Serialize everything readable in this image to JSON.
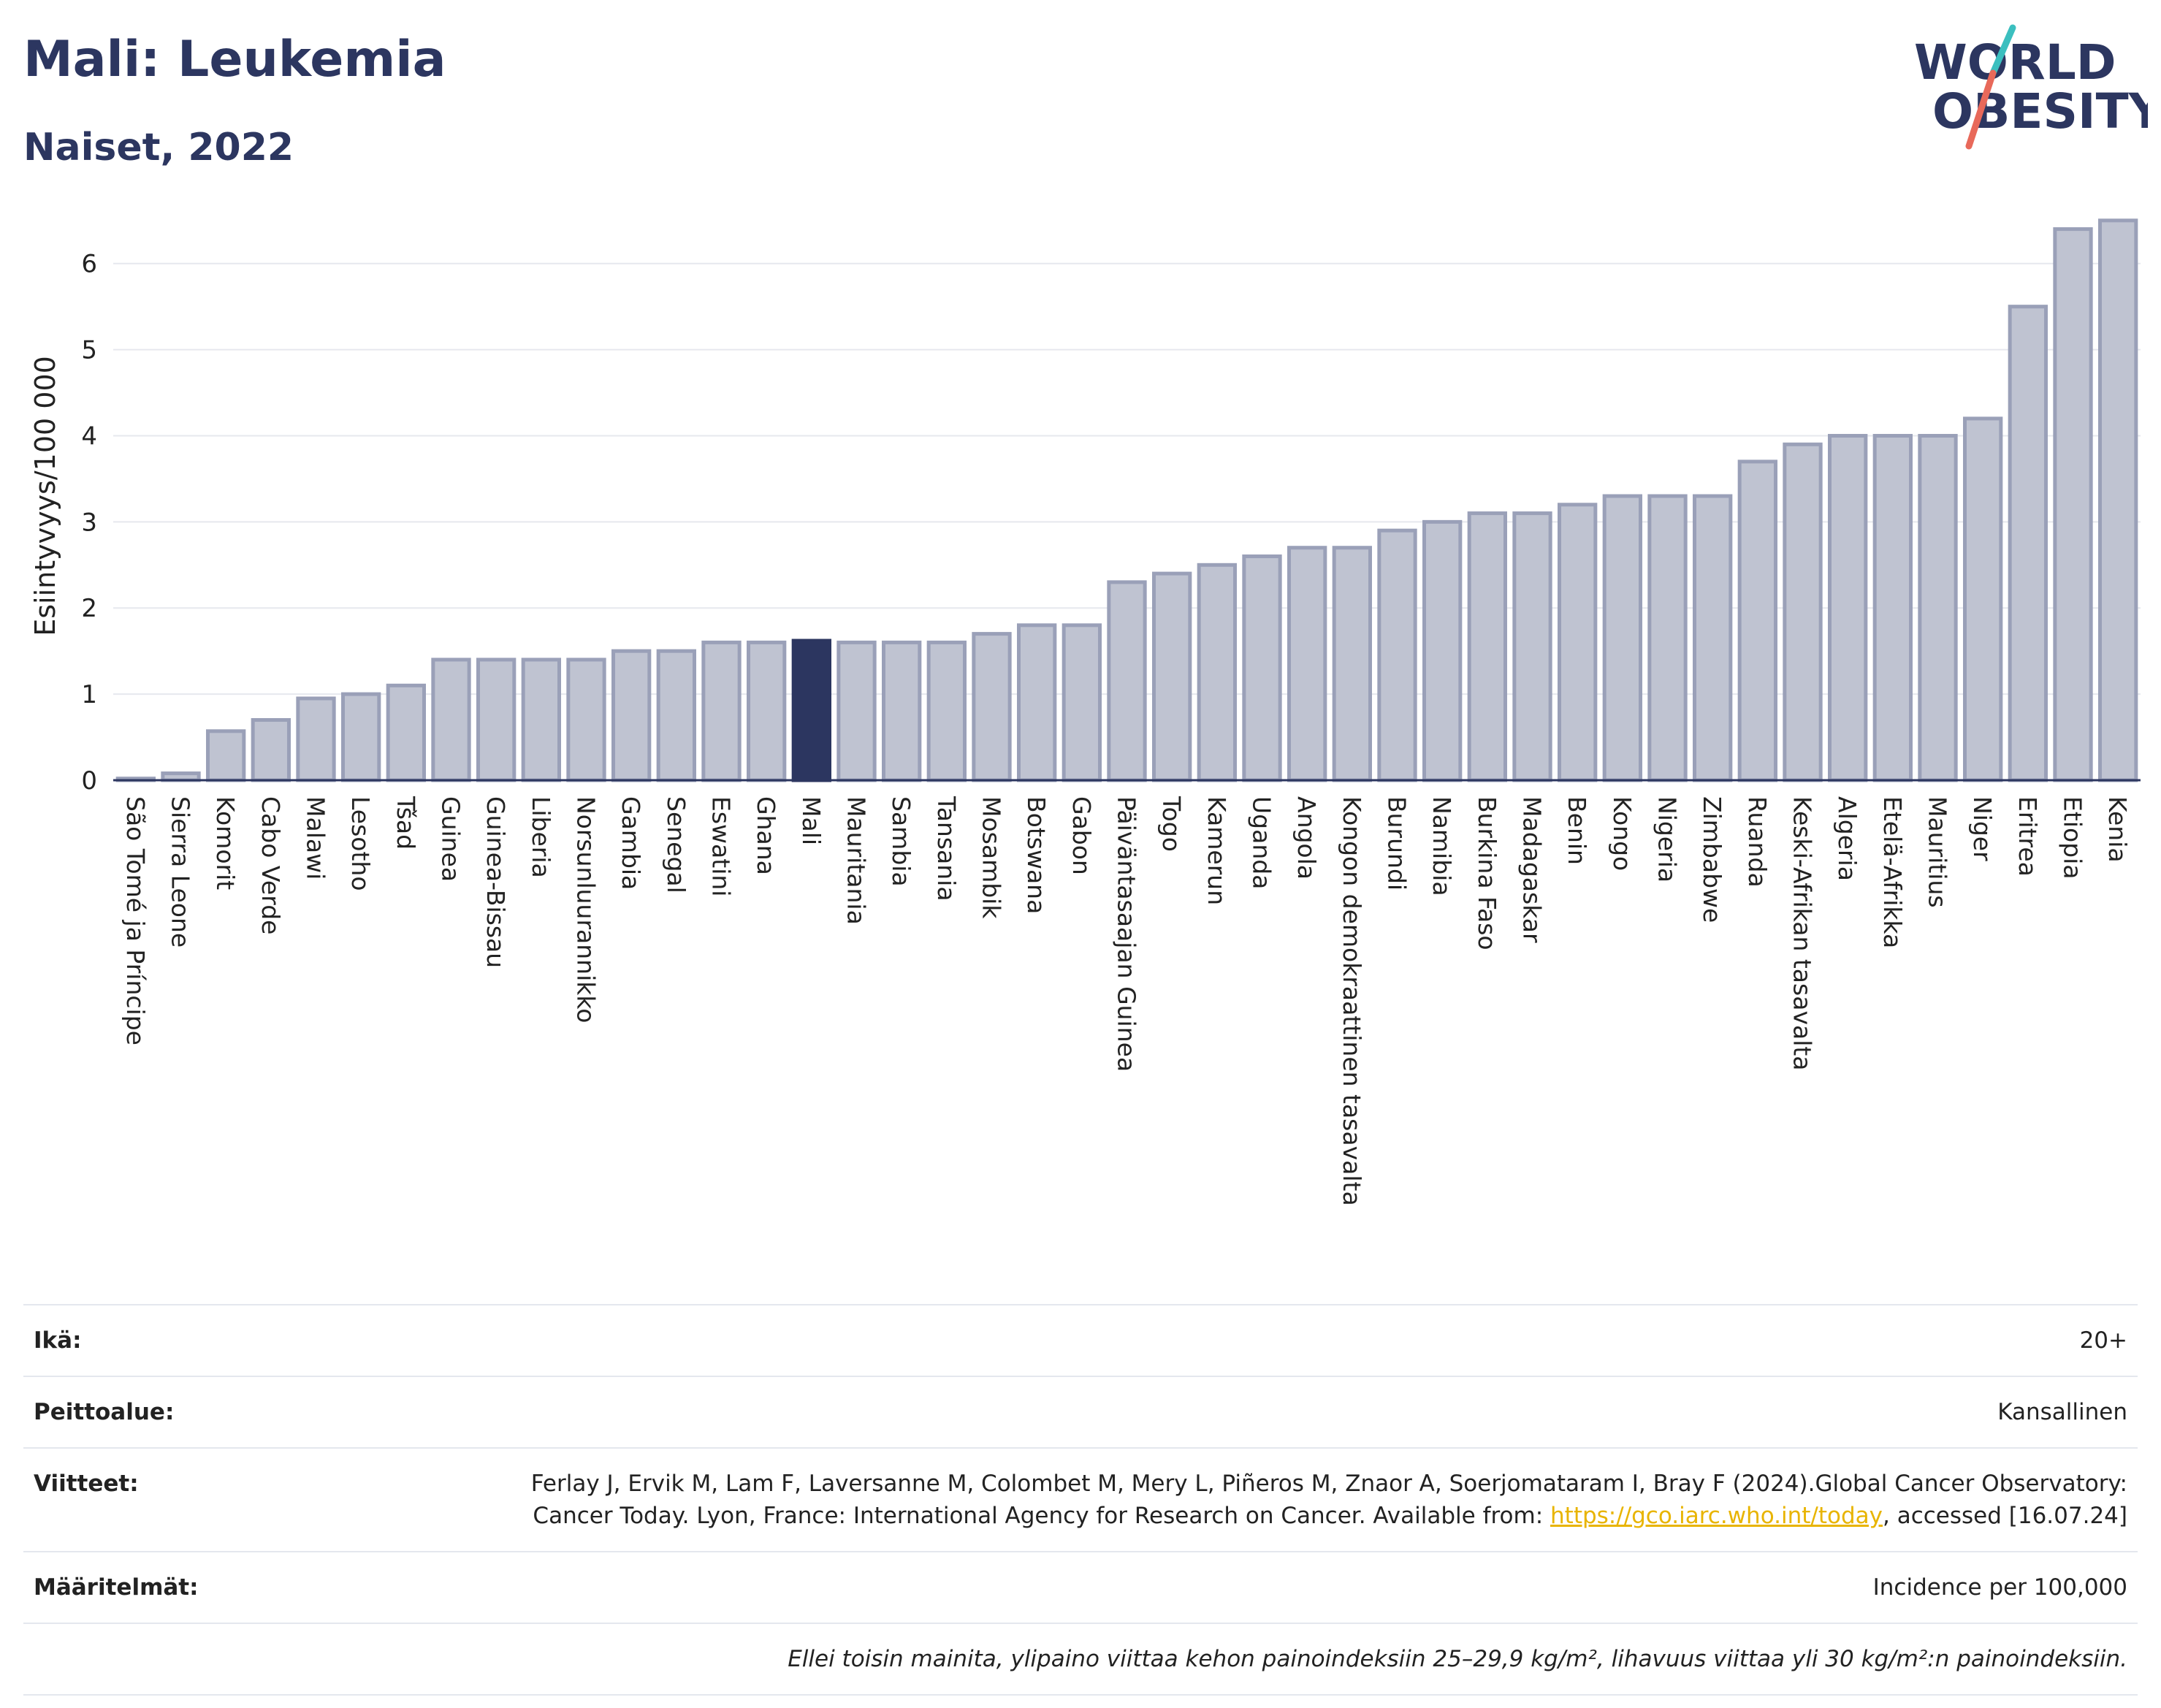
{
  "header": {
    "title": "Mali: Leukemia",
    "subtitle": "Naiset, 2022",
    "logo_line1": "WORLD",
    "logo_line2": "OBESITY"
  },
  "colors": {
    "highlight": "#2c3660",
    "bar_fill": "#bfc3d1",
    "bar_stroke": "#9aa0b8",
    "logo_text": "#2c3660",
    "logo_slash_top": "#3bbfbf",
    "logo_slash_bottom": "#e8695a",
    "link": "#e8b400"
  },
  "chart_data": {
    "type": "bar",
    "title": "Mali: Leukemia",
    "subtitle": "Naiset, 2022",
    "xlabel": "",
    "ylabel": "Esiintyvyys/100 000",
    "ylim": [
      0,
      6.6
    ],
    "yticks": [
      0,
      1,
      2,
      3,
      4,
      5,
      6
    ],
    "grid": true,
    "highlight": "Mali",
    "categories": [
      "São Tomé ja Príncipe",
      "Sierra Leone",
      "Komorit",
      "Cabo Verde",
      "Malawi",
      "Lesotho",
      "Tšad",
      "Guinea",
      "Guinea-Bissau",
      "Liberia",
      "Norsunluurannikko",
      "Gambia",
      "Senegal",
      "Eswatini",
      "Ghana",
      "Mali",
      "Mauritania",
      "Sambia",
      "Tansania",
      "Mosambik",
      "Botswana",
      "Gabon",
      "Päiväntasaajan Guinea",
      "Togo",
      "Kamerun",
      "Uganda",
      "Angola",
      "Kongon demokraattinen tasavalta",
      "Burundi",
      "Namibia",
      "Burkina Faso",
      "Madagaskar",
      "Benin",
      "Kongo",
      "Nigeria",
      "Zimbabwe",
      "Ruanda",
      "Keski-Afrikan tasavalta",
      "Algeria",
      "Etelä-Afrikka",
      "Mauritius",
      "Niger",
      "Eritrea",
      "Etiopia",
      "Kenia"
    ],
    "values": [
      0.02,
      0.08,
      0.57,
      0.7,
      0.95,
      1.0,
      1.1,
      1.4,
      1.4,
      1.4,
      1.4,
      1.5,
      1.5,
      1.6,
      1.6,
      1.62,
      1.6,
      1.6,
      1.6,
      1.7,
      1.8,
      1.8,
      2.3,
      2.4,
      2.5,
      2.6,
      2.7,
      2.7,
      2.9,
      3.0,
      3.1,
      3.1,
      3.2,
      3.3,
      3.3,
      3.3,
      3.7,
      3.9,
      4.0,
      4.0,
      4.0,
      4.2,
      5.5,
      6.4,
      6.5
    ]
  },
  "info": {
    "age_label": "Ikä:",
    "age_value": "20+",
    "coverage_label": "Peittoalue:",
    "coverage_value": "Kansallinen",
    "refs_label": "Viitteet:",
    "refs_text1": "Ferlay J, Ervik M, Lam F, Laversanne M, Colombet M, Mery L, Piñeros M, Znaor A, Soerjomataram I, Bray F (2024).Global Cancer Observatory: Cancer Today. Lyon, France: International Agency for Research on Cancer. Available from: ",
    "refs_link": "https://gco.iarc.who.int/today",
    "refs_text2": ", accessed [16.07.24]",
    "defs_label": "Määritelmät:",
    "defs_value": "Incidence per 100,000",
    "note": "Ellei toisin mainita, ylipaino viittaa kehon painoindeksiin 25–29,9 kg/m², lihavuus viittaa yli 30 kg/m²:n painoindeksiin."
  }
}
